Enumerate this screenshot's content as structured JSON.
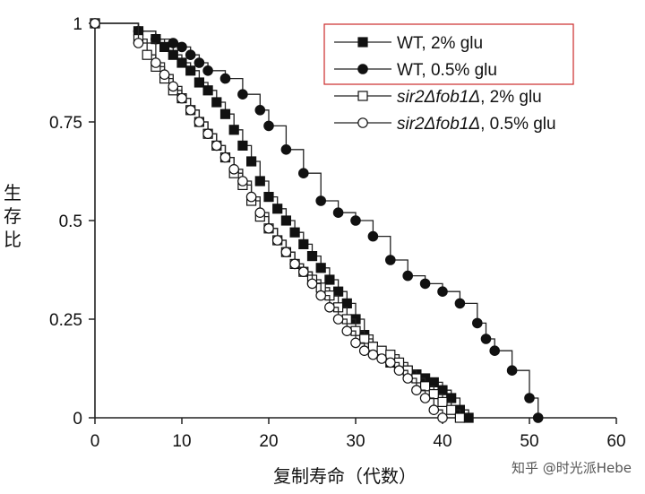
{
  "chart_data": {
    "type": "line",
    "xlabel": "复制寿命（代数）",
    "ylabel": "生存比",
    "xlim": [
      0,
      60
    ],
    "ylim": [
      0,
      1
    ],
    "xticks": [
      "0",
      "10",
      "20",
      "30",
      "40",
      "50",
      "60"
    ],
    "yticks": [
      "0",
      "0.25",
      "0.5",
      "0.75",
      "1"
    ],
    "grid": false,
    "legend_position": "top-right",
    "highlight_color": "#cc2a2a",
    "series": [
      {
        "name": "WT, 2% glu",
        "marker": "square-filled",
        "x": [
          0,
          5,
          7,
          8,
          9,
          10,
          11,
          12,
          13,
          14,
          15,
          16,
          17,
          18,
          19,
          20,
          21,
          22,
          23,
          24,
          25,
          26,
          27,
          28,
          29,
          30,
          31,
          32,
          33,
          34,
          35,
          36,
          37,
          38,
          39,
          40,
          41,
          42,
          43
        ],
        "y": [
          1.0,
          0.98,
          0.96,
          0.94,
          0.92,
          0.9,
          0.88,
          0.85,
          0.83,
          0.8,
          0.77,
          0.73,
          0.69,
          0.65,
          0.6,
          0.56,
          0.53,
          0.5,
          0.47,
          0.44,
          0.41,
          0.38,
          0.35,
          0.32,
          0.29,
          0.25,
          0.21,
          0.18,
          0.16,
          0.14,
          0.13,
          0.12,
          0.11,
          0.1,
          0.09,
          0.07,
          0.05,
          0.02,
          0.0
        ]
      },
      {
        "name": "WT, 0.5% glu",
        "marker": "circle-filled",
        "x": [
          0,
          5,
          7,
          9,
          10,
          11,
          12,
          13,
          15,
          17,
          19,
          20,
          22,
          24,
          26,
          28,
          30,
          32,
          34,
          36,
          38,
          40,
          42,
          44,
          45,
          46,
          48,
          50,
          51
        ],
        "y": [
          1.0,
          0.98,
          0.96,
          0.95,
          0.94,
          0.92,
          0.9,
          0.88,
          0.86,
          0.82,
          0.78,
          0.74,
          0.68,
          0.62,
          0.55,
          0.52,
          0.5,
          0.46,
          0.4,
          0.36,
          0.34,
          0.32,
          0.29,
          0.24,
          0.2,
          0.17,
          0.12,
          0.05,
          0.0
        ]
      },
      {
        "name": "sir2Δfob1Δ, 2% glu",
        "marker": "square-open",
        "x": [
          0,
          5,
          6,
          7,
          8,
          9,
          10,
          11,
          12,
          13,
          14,
          15,
          16,
          17,
          18,
          19,
          20,
          21,
          22,
          23,
          24,
          25,
          26,
          27,
          28,
          29,
          30,
          31,
          32,
          33,
          34,
          35,
          36,
          37,
          38,
          39,
          40,
          41,
          42
        ],
        "y": [
          1.0,
          0.96,
          0.92,
          0.89,
          0.86,
          0.83,
          0.81,
          0.78,
          0.75,
          0.72,
          0.69,
          0.66,
          0.62,
          0.59,
          0.55,
          0.51,
          0.48,
          0.45,
          0.42,
          0.39,
          0.37,
          0.35,
          0.33,
          0.31,
          0.28,
          0.25,
          0.22,
          0.2,
          0.18,
          0.17,
          0.16,
          0.14,
          0.12,
          0.1,
          0.08,
          0.06,
          0.04,
          0.02,
          0.0
        ]
      },
      {
        "name": "sir2Δfob1Δ, 0.5% glu",
        "marker": "circle-open",
        "x": [
          0,
          5,
          7,
          8,
          9,
          10,
          11,
          12,
          13,
          14,
          15,
          16,
          17,
          18,
          19,
          20,
          21,
          22,
          23,
          24,
          25,
          26,
          27,
          28,
          29,
          30,
          31,
          32,
          33,
          34,
          35,
          36,
          37,
          38,
          39,
          40
        ],
        "y": [
          1.0,
          0.95,
          0.9,
          0.87,
          0.84,
          0.81,
          0.78,
          0.75,
          0.72,
          0.69,
          0.66,
          0.63,
          0.6,
          0.56,
          0.52,
          0.48,
          0.45,
          0.42,
          0.39,
          0.37,
          0.34,
          0.31,
          0.28,
          0.25,
          0.22,
          0.19,
          0.17,
          0.16,
          0.15,
          0.14,
          0.12,
          0.1,
          0.07,
          0.05,
          0.02,
          0.0
        ]
      }
    ],
    "legend_labels": [
      {
        "plain": "WT, 2% glu",
        "italic": "",
        "suffix": ""
      },
      {
        "plain": "WT, 0.5% glu",
        "italic": "",
        "suffix": ""
      },
      {
        "plain": "",
        "italic": "sir2Δfob1Δ",
        "suffix": ", 2% glu"
      },
      {
        "plain": "",
        "italic": "sir2Δfob1Δ",
        "suffix": ", 0.5% glu"
      }
    ]
  },
  "watermark": "知乎 @时光派Hebe"
}
